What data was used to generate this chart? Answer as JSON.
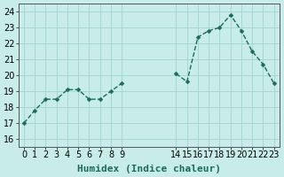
{
  "x": [
    0,
    1,
    2,
    3,
    4,
    5,
    6,
    7,
    8,
    9,
    14,
    15,
    16,
    17,
    18,
    19,
    20,
    21,
    22,
    23
  ],
  "y": [
    17.0,
    17.8,
    18.5,
    18.5,
    19.1,
    19.1,
    18.5,
    18.5,
    19.0,
    19.5,
    20.1,
    19.6,
    22.4,
    22.8,
    23.0,
    23.8,
    22.8,
    21.5,
    20.7,
    19.5
  ],
  "xticks": [
    0,
    1,
    2,
    3,
    4,
    5,
    6,
    7,
    8,
    9,
    14,
    15,
    16,
    17,
    18,
    19,
    20,
    21,
    22,
    23
  ],
  "yticks": [
    16,
    17,
    18,
    19,
    20,
    21,
    22,
    23,
    24
  ],
  "ylim": [
    15.5,
    24.5
  ],
  "xlim": [
    -0.5,
    23.5
  ],
  "xlabel": "Humidex (Indice chaleur)",
  "line_color": "#1a6b5a",
  "marker": "D",
  "marker_size": 2.5,
  "bg_color": "#c8ecea",
  "grid_color": "#a0d4d0",
  "xlabel_fontsize": 8,
  "tick_fontsize": 7
}
